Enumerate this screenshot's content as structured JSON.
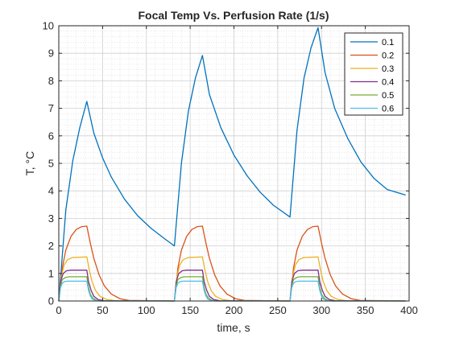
{
  "chart_data": {
    "type": "line",
    "title": "Focal Temp Vs. Perfusion Rate (1/s)",
    "xlabel": "time, s",
    "ylabel": "T, °C",
    "xlim": [
      0,
      400
    ],
    "ylim": [
      0,
      10
    ],
    "xticks": [
      0,
      50,
      100,
      150,
      200,
      250,
      300,
      350,
      400
    ],
    "yticks": [
      0,
      1,
      2,
      3,
      4,
      5,
      6,
      7,
      8,
      9,
      10
    ],
    "grid": "major and minor dotted",
    "legend_position": "top-right",
    "pulse_on_durations": [
      [
        0,
        32
      ],
      [
        132,
        164
      ],
      [
        264,
        296
      ]
    ],
    "series": [
      {
        "name": "0.1",
        "color": "#0072BD",
        "points": [
          [
            0,
            0
          ],
          [
            8,
            3.3
          ],
          [
            16,
            5.1
          ],
          [
            24,
            6.3
          ],
          [
            32,
            7.25
          ],
          [
            40,
            6.1
          ],
          [
            50,
            5.2
          ],
          [
            60,
            4.5
          ],
          [
            75,
            3.7
          ],
          [
            90,
            3.1
          ],
          [
            105,
            2.65
          ],
          [
            120,
            2.28
          ],
          [
            132,
            2.0
          ],
          [
            140,
            5.0
          ],
          [
            148,
            6.9
          ],
          [
            156,
            8.1
          ],
          [
            164,
            8.92
          ],
          [
            172,
            7.5
          ],
          [
            185,
            6.3
          ],
          [
            200,
            5.3
          ],
          [
            215,
            4.55
          ],
          [
            230,
            3.95
          ],
          [
            245,
            3.48
          ],
          [
            264,
            3.05
          ],
          [
            272,
            6.2
          ],
          [
            280,
            8.1
          ],
          [
            288,
            9.2
          ],
          [
            296,
            9.93
          ],
          [
            304,
            8.3
          ],
          [
            315,
            7.0
          ],
          [
            330,
            5.9
          ],
          [
            345,
            5.05
          ],
          [
            360,
            4.45
          ],
          [
            375,
            4.05
          ],
          [
            396,
            3.85
          ]
        ]
      },
      {
        "name": "0.2",
        "color": "#D95319",
        "points": [
          [
            0,
            0
          ],
          [
            4,
            1.2
          ],
          [
            8,
            1.85
          ],
          [
            14,
            2.35
          ],
          [
            20,
            2.6
          ],
          [
            26,
            2.7
          ],
          [
            32,
            2.72
          ],
          [
            36,
            2.1
          ],
          [
            40,
            1.55
          ],
          [
            46,
            0.95
          ],
          [
            52,
            0.55
          ],
          [
            60,
            0.25
          ],
          [
            70,
            0.08
          ],
          [
            80,
            0.02
          ],
          [
            132,
            0
          ],
          [
            136,
            1.2
          ],
          [
            140,
            1.85
          ],
          [
            146,
            2.35
          ],
          [
            152,
            2.6
          ],
          [
            158,
            2.7
          ],
          [
            164,
            2.72
          ],
          [
            168,
            2.1
          ],
          [
            172,
            1.55
          ],
          [
            178,
            0.95
          ],
          [
            184,
            0.55
          ],
          [
            192,
            0.25
          ],
          [
            202,
            0.08
          ],
          [
            212,
            0.02
          ],
          [
            264,
            0
          ],
          [
            268,
            1.2
          ],
          [
            272,
            1.85
          ],
          [
            278,
            2.35
          ],
          [
            284,
            2.6
          ],
          [
            290,
            2.7
          ],
          [
            296,
            2.72
          ],
          [
            300,
            2.1
          ],
          [
            304,
            1.55
          ],
          [
            310,
            0.95
          ],
          [
            316,
            0.55
          ],
          [
            324,
            0.25
          ],
          [
            334,
            0.08
          ],
          [
            344,
            0.02
          ],
          [
            396,
            0
          ]
        ]
      },
      {
        "name": "0.3",
        "color": "#EDB120",
        "points": [
          [
            0,
            0
          ],
          [
            3,
            0.9
          ],
          [
            6,
            1.3
          ],
          [
            10,
            1.5
          ],
          [
            16,
            1.58
          ],
          [
            32,
            1.6
          ],
          [
            35,
            1.1
          ],
          [
            38,
            0.7
          ],
          [
            42,
            0.38
          ],
          [
            47,
            0.17
          ],
          [
            55,
            0.05
          ],
          [
            65,
            0.01
          ],
          [
            132,
            0
          ],
          [
            135,
            0.9
          ],
          [
            138,
            1.3
          ],
          [
            142,
            1.5
          ],
          [
            148,
            1.58
          ],
          [
            164,
            1.6
          ],
          [
            167,
            1.1
          ],
          [
            170,
            0.7
          ],
          [
            174,
            0.38
          ],
          [
            179,
            0.17
          ],
          [
            187,
            0.05
          ],
          [
            197,
            0.01
          ],
          [
            264,
            0
          ],
          [
            267,
            0.9
          ],
          [
            270,
            1.3
          ],
          [
            274,
            1.5
          ],
          [
            280,
            1.58
          ],
          [
            296,
            1.6
          ],
          [
            299,
            1.1
          ],
          [
            302,
            0.7
          ],
          [
            306,
            0.38
          ],
          [
            311,
            0.17
          ],
          [
            319,
            0.05
          ],
          [
            329,
            0.01
          ],
          [
            396,
            0
          ]
        ]
      },
      {
        "name": "0.4",
        "color": "#7E2F8E",
        "points": [
          [
            0,
            0
          ],
          [
            2,
            0.7
          ],
          [
            5,
            1.0
          ],
          [
            9,
            1.1
          ],
          [
            14,
            1.12
          ],
          [
            32,
            1.12
          ],
          [
            34,
            0.7
          ],
          [
            37,
            0.38
          ],
          [
            40,
            0.17
          ],
          [
            45,
            0.05
          ],
          [
            52,
            0.01
          ],
          [
            132,
            0
          ],
          [
            134,
            0.7
          ],
          [
            137,
            1.0
          ],
          [
            141,
            1.1
          ],
          [
            146,
            1.12
          ],
          [
            164,
            1.12
          ],
          [
            166,
            0.7
          ],
          [
            169,
            0.38
          ],
          [
            172,
            0.17
          ],
          [
            177,
            0.05
          ],
          [
            184,
            0.01
          ],
          [
            264,
            0
          ],
          [
            266,
            0.7
          ],
          [
            269,
            1.0
          ],
          [
            273,
            1.1
          ],
          [
            278,
            1.12
          ],
          [
            296,
            1.12
          ],
          [
            298,
            0.7
          ],
          [
            301,
            0.38
          ],
          [
            304,
            0.17
          ],
          [
            309,
            0.05
          ],
          [
            316,
            0.01
          ],
          [
            396,
            0
          ]
        ]
      },
      {
        "name": "0.5",
        "color": "#77AC30",
        "points": [
          [
            0,
            0
          ],
          [
            2,
            0.55
          ],
          [
            4,
            0.78
          ],
          [
            8,
            0.86
          ],
          [
            12,
            0.88
          ],
          [
            32,
            0.88
          ],
          [
            34,
            0.5
          ],
          [
            36,
            0.25
          ],
          [
            39,
            0.1
          ],
          [
            43,
            0.03
          ],
          [
            48,
            0
          ],
          [
            132,
            0
          ],
          [
            134,
            0.55
          ],
          [
            136,
            0.78
          ],
          [
            140,
            0.86
          ],
          [
            144,
            0.88
          ],
          [
            164,
            0.88
          ],
          [
            166,
            0.5
          ],
          [
            168,
            0.25
          ],
          [
            171,
            0.1
          ],
          [
            175,
            0.03
          ],
          [
            180,
            0
          ],
          [
            264,
            0
          ],
          [
            266,
            0.55
          ],
          [
            268,
            0.78
          ],
          [
            272,
            0.86
          ],
          [
            276,
            0.88
          ],
          [
            296,
            0.88
          ],
          [
            298,
            0.5
          ],
          [
            300,
            0.25
          ],
          [
            303,
            0.1
          ],
          [
            307,
            0.03
          ],
          [
            312,
            0
          ],
          [
            396,
            0
          ]
        ]
      },
      {
        "name": "0.6",
        "color": "#4DBEEE",
        "points": [
          [
            0,
            0
          ],
          [
            2,
            0.48
          ],
          [
            4,
            0.65
          ],
          [
            7,
            0.71
          ],
          [
            10,
            0.72
          ],
          [
            32,
            0.72
          ],
          [
            34,
            0.38
          ],
          [
            36,
            0.18
          ],
          [
            38,
            0.07
          ],
          [
            42,
            0.02
          ],
          [
            46,
            0
          ],
          [
            132,
            0
          ],
          [
            134,
            0.48
          ],
          [
            136,
            0.65
          ],
          [
            139,
            0.71
          ],
          [
            142,
            0.72
          ],
          [
            164,
            0.72
          ],
          [
            166,
            0.38
          ],
          [
            168,
            0.18
          ],
          [
            170,
            0.07
          ],
          [
            174,
            0.02
          ],
          [
            178,
            0
          ],
          [
            264,
            0
          ],
          [
            266,
            0.48
          ],
          [
            268,
            0.65
          ],
          [
            271,
            0.71
          ],
          [
            274,
            0.72
          ],
          [
            296,
            0.72
          ],
          [
            298,
            0.38
          ],
          [
            300,
            0.18
          ],
          [
            302,
            0.07
          ],
          [
            306,
            0.02
          ],
          [
            310,
            0
          ],
          [
            396,
            0
          ]
        ]
      }
    ]
  }
}
